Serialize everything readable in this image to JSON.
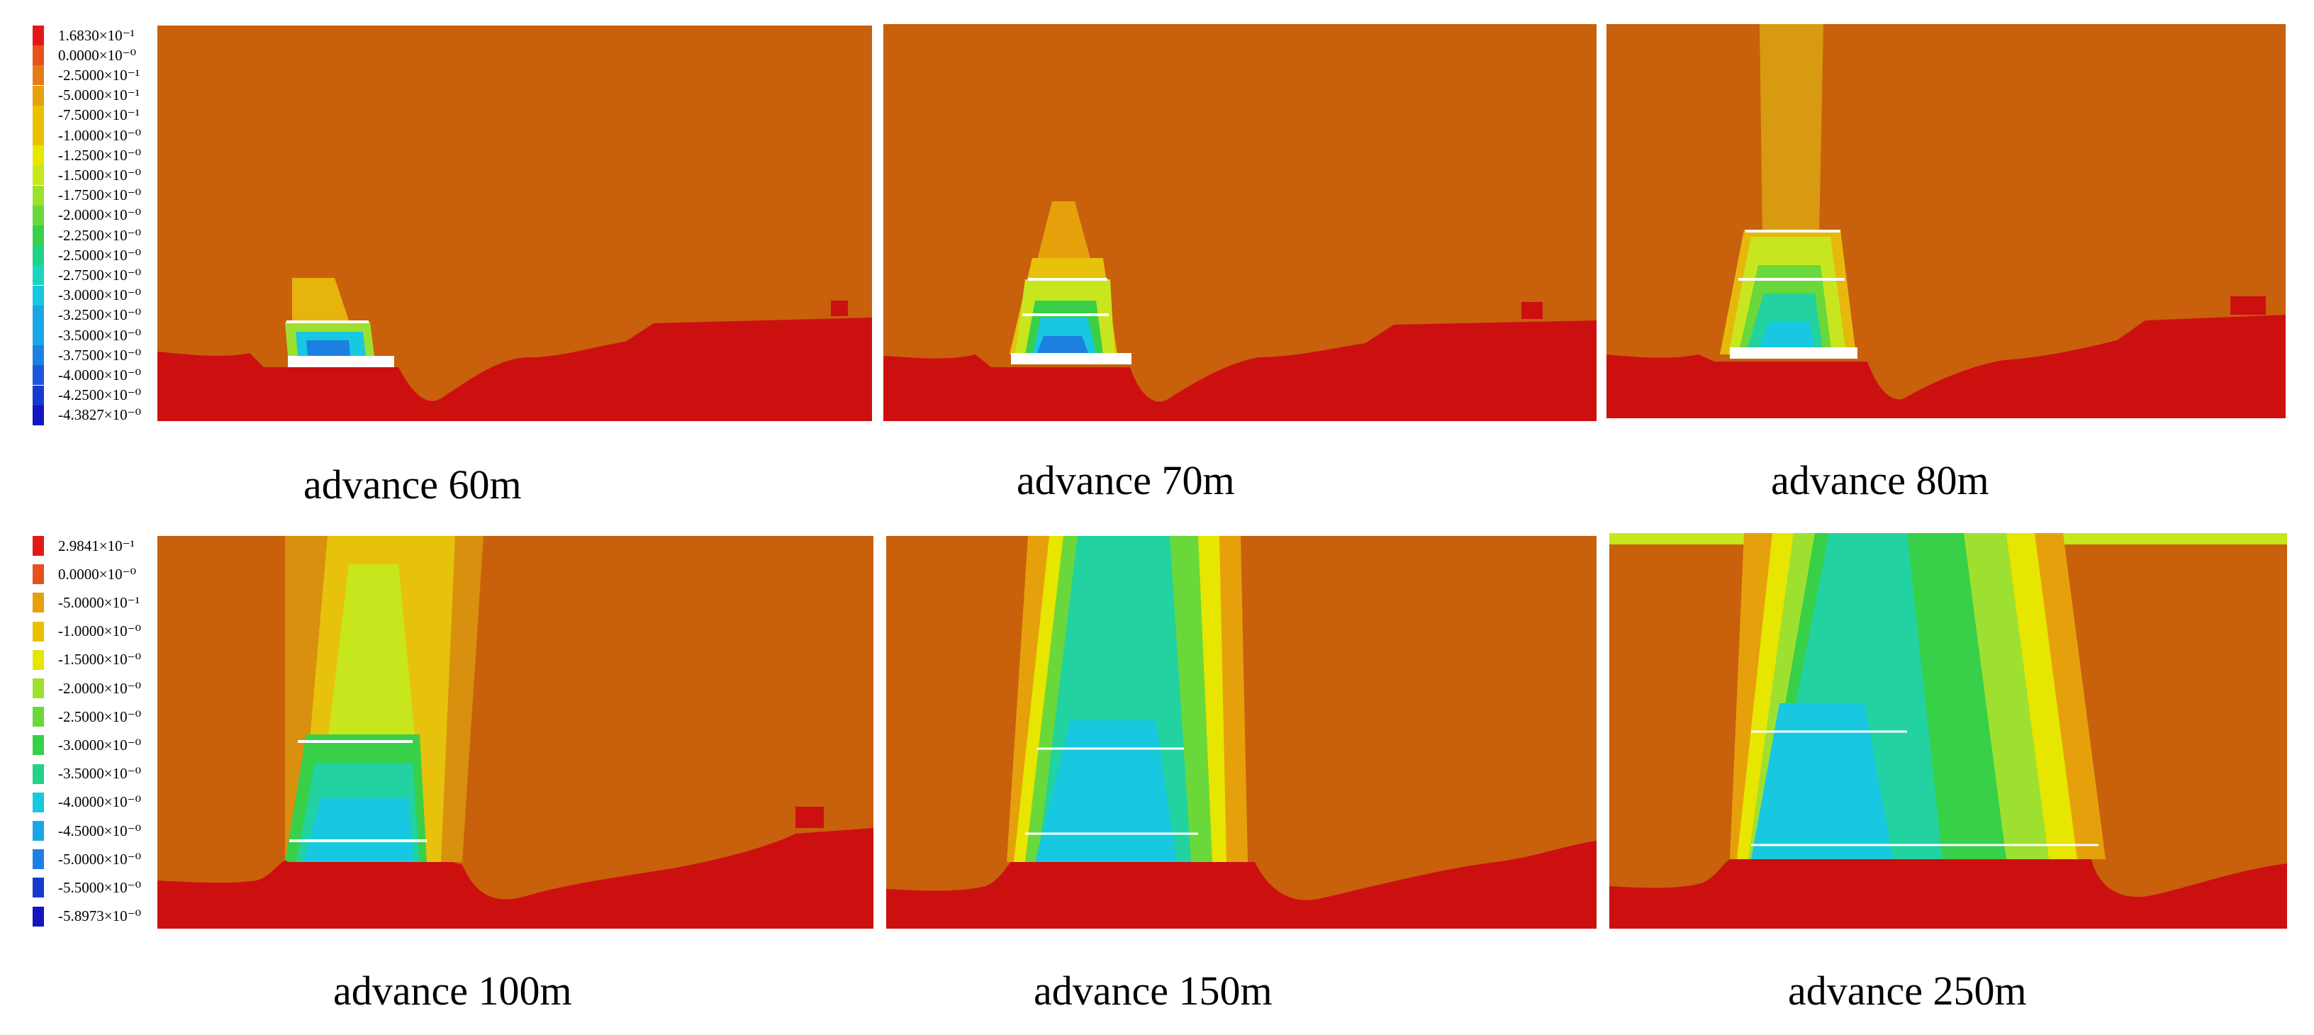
{
  "colors": {
    "rock_base": "#cc1010",
    "overburden": "#c8600c",
    "void": "#ffffff",
    "scale": [
      "#e51818",
      "#e8501c",
      "#e47a18",
      "#e6a00c",
      "#e8c200",
      "#e6e600",
      "#c8e61e",
      "#9ee030",
      "#6ad83a",
      "#38d048",
      "#22d288",
      "#1ad6c0",
      "#18c8e0",
      "#1aa6e4",
      "#1c80e2",
      "#1c58dc",
      "#1838d0",
      "#1414c0"
    ]
  },
  "top_legend": {
    "labels": [
      "1.6830×10⁻¹",
      "0.0000×10⁻⁰",
      "-2.5000×10⁻¹",
      "-5.0000×10⁻¹",
      "-7.5000×10⁻¹",
      "-1.0000×10⁻⁰",
      "-1.2500×10⁻⁰",
      "-1.5000×10⁻⁰",
      "-1.7500×10⁻⁰",
      "-2.0000×10⁻⁰",
      "-2.2500×10⁻⁰",
      "-2.5000×10⁻⁰",
      "-2.7500×10⁻⁰",
      "-3.0000×10⁻⁰",
      "-3.2500×10⁻⁰",
      "-3.5000×10⁻⁰",
      "-3.7500×10⁻⁰",
      "-4.0000×10⁻⁰",
      "-4.2500×10⁻⁰",
      "-4.3827×10⁻⁰"
    ]
  },
  "bottom_legend": {
    "labels": [
      "2.9841×10⁻¹",
      "0.0000×10⁻⁰",
      "-5.0000×10⁻¹",
      "-1.0000×10⁻⁰",
      "-1.5000×10⁻⁰",
      "-2.0000×10⁻⁰",
      "-2.5000×10⁻⁰",
      "-3.0000×10⁻⁰",
      "-3.5000×10⁻⁰",
      "-4.0000×10⁻⁰",
      "-4.5000×10⁻⁰",
      "-5.0000×10⁻⁰",
      "-5.5000×10⁻⁰",
      "-5.8973×10⁻⁰"
    ]
  },
  "panels": [
    {
      "caption": "advance 60m",
      "advance_m": 60
    },
    {
      "caption": "advance 70m",
      "advance_m": 70
    },
    {
      "caption": "advance 80m",
      "advance_m": 80
    },
    {
      "caption": "advance 100m",
      "advance_m": 100
    },
    {
      "caption": "advance 150m",
      "advance_m": 150
    },
    {
      "caption": "advance 250m",
      "advance_m": 250
    }
  ]
}
